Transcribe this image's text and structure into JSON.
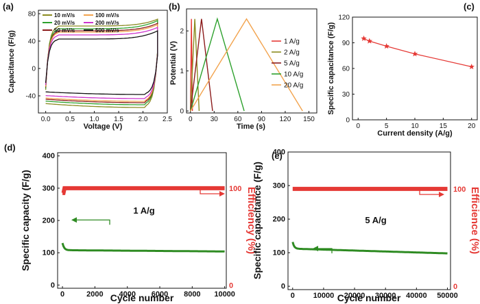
{
  "panels": {
    "a": "(a)",
    "b": "(b)",
    "c": "(c)",
    "d": "(d)",
    "e": "(e)"
  },
  "chart_data": [
    {
      "id": "a",
      "type": "line",
      "xlabel": "Voltage (V)",
      "ylabel": "Capacitance (F/g)",
      "xlim": [
        -0.15,
        2.5
      ],
      "ylim": [
        -65,
        85
      ],
      "xticks": [
        "0.0",
        "0.5",
        "1.0",
        "1.5",
        "2.0",
        "2.5"
      ],
      "yticks": [
        "-40",
        "0",
        "40",
        "80"
      ],
      "legend": "top-left, two columns",
      "series": [
        {
          "name": "10 mV/s",
          "color": "#8a8a1f",
          "c_top": 62,
          "c_bot": -57,
          "peak": 72
        },
        {
          "name": "20 mV/s",
          "color": "#2ca02c",
          "c_top": 58,
          "c_bot": -53,
          "peak": 70
        },
        {
          "name": "50 mV/s",
          "color": "#8b1a1a",
          "c_top": 55,
          "c_bot": -50,
          "peak": 66
        },
        {
          "name": "100 mV/s",
          "color": "#f2a34d",
          "c_top": 53,
          "c_bot": -48,
          "peak": 64
        },
        {
          "name": "200 mV/s",
          "color": "#cc33cc",
          "c_top": 49,
          "c_bot": -44,
          "peak": 60
        },
        {
          "name": "500 mV/s",
          "color": "#111111",
          "c_top": 43,
          "c_bot": -38,
          "peak": 55
        }
      ]
    },
    {
      "id": "b",
      "type": "line",
      "xlabel": "Time (s)",
      "ylabel": "Potential (V)",
      "xlim": [
        -5,
        160
      ],
      "ylim": [
        -0.05,
        2.55
      ],
      "xticks": [
        "0",
        "30",
        "60",
        "90",
        "120",
        "150"
      ],
      "yticks": [
        "0",
        "1",
        "2"
      ],
      "legend": "right",
      "series": [
        {
          "name": "1 A/g",
          "color": "#e53935",
          "t_peak": 1.2,
          "t_end": 2.5
        },
        {
          "name": "2 A/g",
          "color": "#8a8a1f",
          "t_peak": 5.5,
          "t_end": 11
        },
        {
          "name": "5 A/g",
          "color": "#8b1a1a",
          "t_peak": 14,
          "t_end": 28
        },
        {
          "name": "10 A/g",
          "color": "#2ca02c",
          "t_peak": 34,
          "t_end": 68
        },
        {
          "name": "20 A/g",
          "color": "#f2a34d",
          "t_peak": 71,
          "t_end": 142
        }
      ],
      "vmax": 2.3
    },
    {
      "id": "c",
      "type": "line",
      "xlabel": "Current density (A/g)",
      "ylabel": "Specific capacitance (F/g)",
      "xlim": [
        -1,
        21
      ],
      "ylim": [
        0,
        120
      ],
      "xticks": [
        "0",
        "5",
        "10",
        "15",
        "20"
      ],
      "yticks": [
        "0",
        "30",
        "60",
        "90",
        "120"
      ],
      "color": "#e53935",
      "x": [
        1,
        2,
        5,
        10,
        20
      ],
      "y": [
        95,
        92,
        86,
        77,
        62
      ]
    },
    {
      "id": "d",
      "type": "line",
      "xlabel": "Cycle number",
      "ylabel": "Specific capacity (F/g)",
      "ylabel_right": "Efficiency (%)",
      "annotation": "1 A/g",
      "xlim": [
        -300,
        10100
      ],
      "ylim": [
        -10,
        410
      ],
      "xticks": [
        "0",
        "2000",
        "4000",
        "6000",
        "8000",
        "10000"
      ],
      "yticks": [
        "0",
        "100",
        "200",
        "300",
        "400"
      ],
      "yticks_right": [
        "0",
        "100"
      ],
      "capacity": {
        "color": "#2e8b22",
        "start": 130,
        "plateau": 108,
        "end": 104
      },
      "efficiency": {
        "color": "#e53935",
        "start_left": 285,
        "value_left": 300
      }
    },
    {
      "id": "e",
      "type": "scatter",
      "xlabel": "Cycle number",
      "ylabel": "Specific capacitance (F/g)",
      "ylabel_right": "Efficience (%)",
      "annotation": "5 A/g",
      "xlim": [
        -1500,
        51000
      ],
      "ylim": [
        -10,
        400
      ],
      "xticks": [
        "0",
        "10000",
        "20000",
        "30000",
        "40000",
        "50000"
      ],
      "yticks": [
        "0",
        "100",
        "200",
        "300",
        "400"
      ],
      "yticks_right": [
        "0",
        "100"
      ],
      "capacity": {
        "color": "#2e8b22",
        "start": 132,
        "plateau": 112,
        "end": 98
      },
      "efficiency": {
        "color": "#e53935",
        "value_left": 290
      }
    }
  ]
}
